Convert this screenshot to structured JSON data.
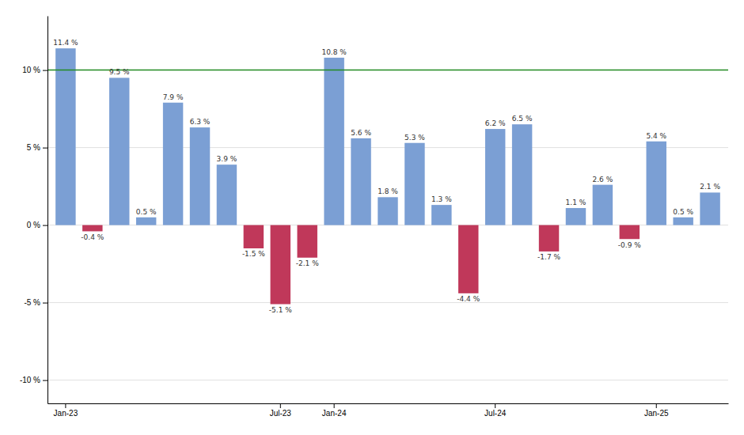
{
  "chart_data": {
    "type": "bar",
    "categories": [
      "Jan-23",
      null,
      null,
      null,
      null,
      null,
      null,
      null,
      "Jul-23",
      null,
      "Jan-24",
      null,
      null,
      null,
      null,
      null,
      "Jul-24",
      null,
      null,
      null,
      null,
      null,
      "Jan-25",
      null,
      null
    ],
    "values": [
      11.4,
      -0.4,
      9.5,
      0.5,
      7.9,
      6.3,
      3.9,
      -1.5,
      -5.1,
      -2.1,
      10.8,
      5.6,
      1.8,
      5.3,
      1.3,
      -4.4,
      6.2,
      6.5,
      -1.7,
      1.1,
      2.6,
      -0.9,
      5.4,
      0.5,
      2.1
    ],
    "value_labels": [
      "11.4 %",
      "-0.4 %",
      "9.5 %",
      "0.5 %",
      "7.9 %",
      "6.3 %",
      "3.9 %",
      "-1.5 %",
      "-5.1 %",
      "-2.1 %",
      "10.8 %",
      "5.6 %",
      "1.8 %",
      "5.3 %",
      "1.3 %",
      "-4.4 %",
      "6.2 %",
      "6.5 %",
      "-1.7 %",
      "1.1 %",
      "2.6 %",
      "-0.9 %",
      "5.4 %",
      "0.5 %",
      "2.1 %"
    ],
    "colors": [
      "#7B9FD4",
      "#C0385A",
      "#7B9FD4",
      "#7B9FD4",
      "#7B9FD4",
      "#7B9FD4",
      "#7B9FD4",
      "#C0385A",
      "#C0385A",
      "#C0385A",
      "#7B9FD4",
      "#7B9FD4",
      "#7B9FD4",
      "#7B9FD4",
      "#7B9FD4",
      "#C0385A",
      "#7B9FD4",
      "#7B9FD4",
      "#C0385A",
      "#7B9FD4",
      "#7B9FD4",
      "#C0385A",
      "#7B9FD4",
      "#7B9FD4",
      "#7B9FD4"
    ],
    "data_labels": true,
    "ylim": [
      -11.5,
      13.5
    ],
    "yticks": [
      {
        "value": -10,
        "label": "-10 %"
      },
      {
        "value": -5,
        "label": "-5 %"
      },
      {
        "value": 0,
        "label": "0 %"
      },
      {
        "value": 5,
        "label": "5 %"
      },
      {
        "value": 10,
        "label": "10 %"
      }
    ],
    "grid": true,
    "reference_lines": [
      {
        "value": 10,
        "color": "#228B22"
      }
    ]
  }
}
